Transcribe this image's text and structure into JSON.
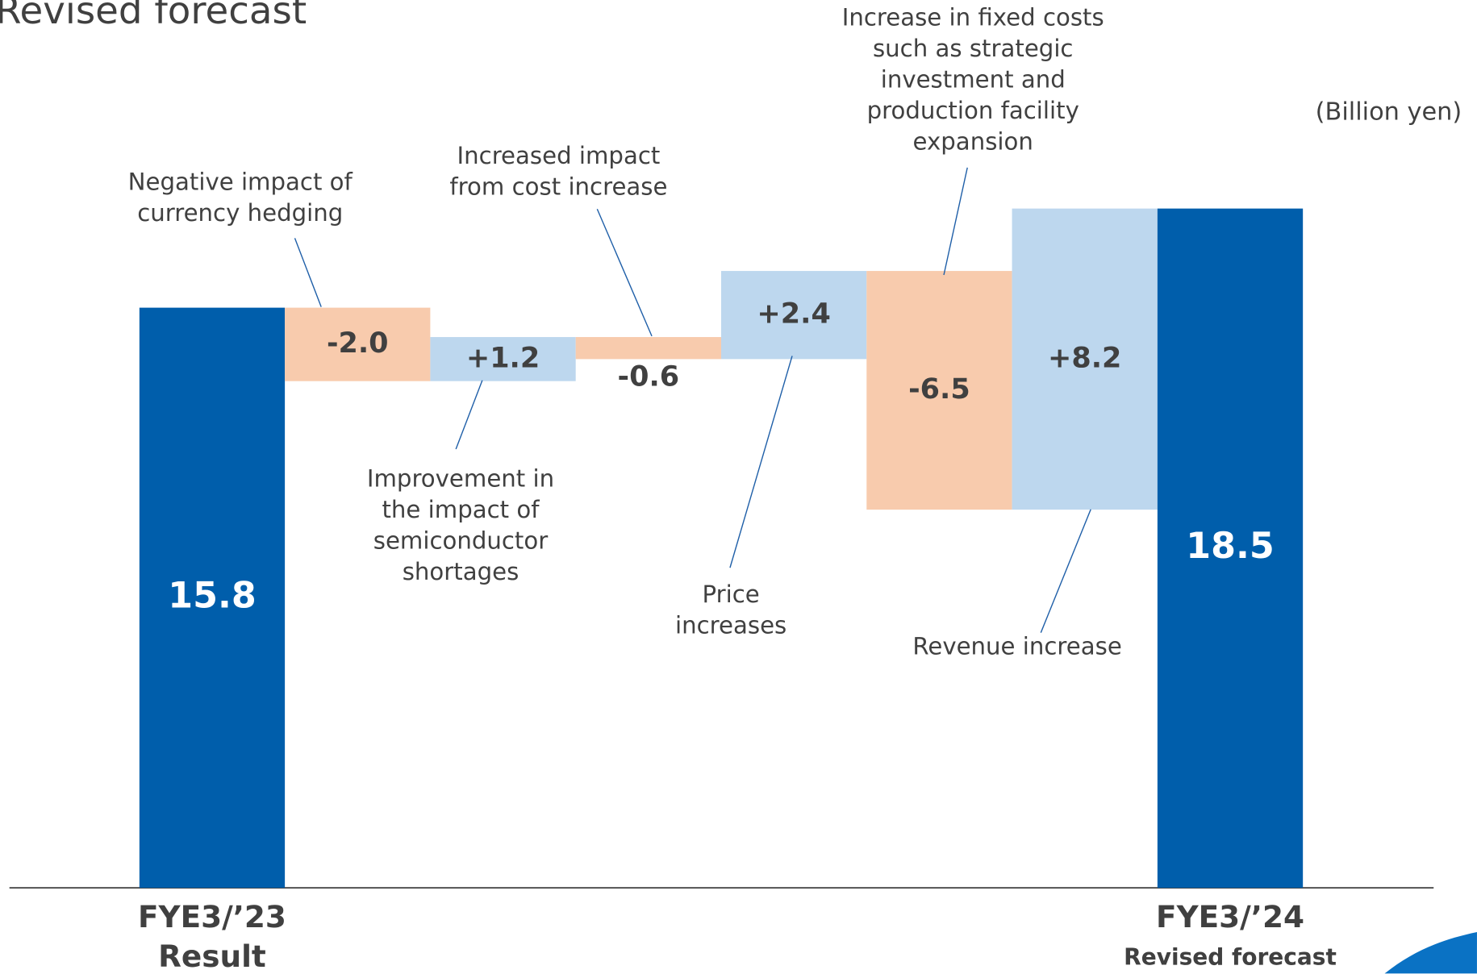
{
  "chart_data": {
    "type": "waterfall",
    "title": "Revised forecast",
    "unit": "(Billion yen)",
    "categories": [
      "FYE3/’23",
      null,
      null,
      null,
      null,
      null,
      null,
      "FYE3/’24"
    ],
    "category_sublabels": [
      "Result",
      null,
      null,
      null,
      null,
      null,
      null,
      "Revised forecast"
    ],
    "values": [
      15.8,
      -2.0,
      1.2,
      -0.6,
      2.4,
      -6.5,
      8.2,
      18.5
    ],
    "value_labels": [
      "15.8",
      "-2.0",
      "+1.2",
      "-0.6",
      "+2.4",
      "-6.5",
      "+8.2",
      "18.5"
    ],
    "annotations": [
      [
        "Negative impact of",
        "currency hedging"
      ],
      [
        "Improvement in",
        "the impact of",
        "semiconductor",
        "shortages"
      ],
      [
        "Increased impact",
        "from cost increase"
      ],
      [
        "Price",
        "increases"
      ],
      [
        "Increase in fixed costs",
        "such as strategic",
        "investment and",
        "production facility",
        "expansion"
      ],
      [
        "Revenue increase"
      ]
    ],
    "colors": {
      "total": "#005eab",
      "increase": "#bdd7ee",
      "decrease": "#f8cbad"
    },
    "ylim": [
      0,
      24
    ]
  }
}
